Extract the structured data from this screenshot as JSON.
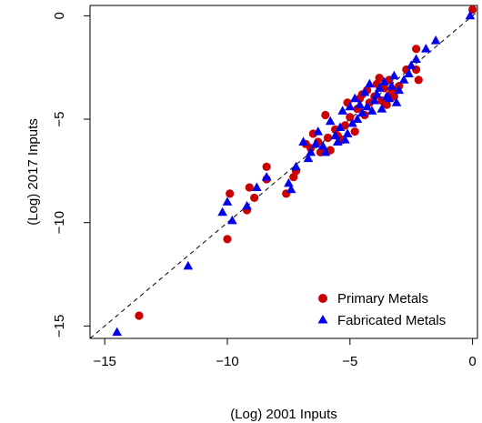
{
  "chart_data": {
    "type": "scatter",
    "xlabel": "(Log) 2001 Inputs",
    "ylabel": "(Log) 2017 Inputs",
    "xlim": [
      -15.6,
      0.2
    ],
    "ylim": [
      -15.6,
      0.5
    ],
    "xticks": [
      -15,
      -10,
      -5,
      0
    ],
    "yticks": [
      -15,
      -10,
      -5,
      0
    ],
    "xtick_labels": [
      "−15",
      "−10",
      "−5",
      "0"
    ],
    "ytick_labels": [
      "−15",
      "−10",
      "−5",
      "0"
    ],
    "reference_line": {
      "style": "dashed",
      "slope": 1,
      "intercept": 0,
      "color": "#000000"
    },
    "legend": {
      "position": "bottom-right"
    },
    "series": [
      {
        "name": "Primary Metals",
        "marker": "circle",
        "color": "#cc0000",
        "points": [
          [
            -13.6,
            -14.5
          ],
          [
            -10.0,
            -10.8
          ],
          [
            -9.9,
            -8.6
          ],
          [
            -9.2,
            -9.4
          ],
          [
            -9.1,
            -8.3
          ],
          [
            -8.9,
            -8.8
          ],
          [
            -8.4,
            -7.3
          ],
          [
            -8.4,
            -7.9
          ],
          [
            -7.6,
            -8.6
          ],
          [
            -7.3,
            -7.8
          ],
          [
            -7.2,
            -7.5
          ],
          [
            -6.8,
            -6.2
          ],
          [
            -6.6,
            -6.4
          ],
          [
            -6.5,
            -5.7
          ],
          [
            -6.3,
            -6.1
          ],
          [
            -6.2,
            -6.6
          ],
          [
            -6.0,
            -4.8
          ],
          [
            -5.9,
            -5.9
          ],
          [
            -5.8,
            -6.5
          ],
          [
            -5.6,
            -5.5
          ],
          [
            -5.5,
            -5.8
          ],
          [
            -5.3,
            -6.0
          ],
          [
            -5.2,
            -5.3
          ],
          [
            -5.1,
            -4.2
          ],
          [
            -5.0,
            -4.9
          ],
          [
            -4.8,
            -5.6
          ],
          [
            -4.7,
            -4.5
          ],
          [
            -4.6,
            -4.0
          ],
          [
            -4.5,
            -3.8
          ],
          [
            -4.4,
            -4.8
          ],
          [
            -4.3,
            -3.6
          ],
          [
            -4.2,
            -4.2
          ],
          [
            -4.0,
            -3.9
          ],
          [
            -3.9,
            -3.3
          ],
          [
            -3.8,
            -3.0
          ],
          [
            -3.7,
            -4.1
          ],
          [
            -3.6,
            -3.5
          ],
          [
            -3.5,
            -4.3
          ],
          [
            -3.4,
            -3.1
          ],
          [
            -3.3,
            -3.7
          ],
          [
            -3.2,
            -3.9
          ],
          [
            -3.1,
            -3.6
          ],
          [
            -3.0,
            -3.4
          ],
          [
            -2.7,
            -2.6
          ],
          [
            -2.3,
            -1.6
          ],
          [
            -2.2,
            -3.1
          ],
          [
            -2.3,
            -2.6
          ],
          [
            0.0,
            0.3
          ]
        ]
      },
      {
        "name": "Fabricated Metals",
        "marker": "triangle",
        "color": "#0000ee",
        "points": [
          [
            -14.5,
            -15.3
          ],
          [
            -11.6,
            -12.1
          ],
          [
            -10.2,
            -9.5
          ],
          [
            -10.0,
            -9.0
          ],
          [
            -9.8,
            -9.9
          ],
          [
            -9.2,
            -9.2
          ],
          [
            -8.8,
            -8.3
          ],
          [
            -8.4,
            -7.8
          ],
          [
            -7.5,
            -8.1
          ],
          [
            -7.4,
            -8.4
          ],
          [
            -7.2,
            -7.3
          ],
          [
            -6.9,
            -6.1
          ],
          [
            -6.7,
            -6.9
          ],
          [
            -6.6,
            -6.6
          ],
          [
            -6.4,
            -6.2
          ],
          [
            -6.3,
            -5.6
          ],
          [
            -6.1,
            -6.3
          ],
          [
            -6.0,
            -6.6
          ],
          [
            -5.8,
            -5.1
          ],
          [
            -5.6,
            -5.8
          ],
          [
            -5.5,
            -6.1
          ],
          [
            -5.4,
            -5.4
          ],
          [
            -5.3,
            -4.6
          ],
          [
            -5.2,
            -6.0
          ],
          [
            -5.1,
            -5.7
          ],
          [
            -5.0,
            -4.4
          ],
          [
            -4.9,
            -5.2
          ],
          [
            -4.8,
            -4.0
          ],
          [
            -4.7,
            -5.0
          ],
          [
            -4.6,
            -4.3
          ],
          [
            -4.5,
            -4.7
          ],
          [
            -4.4,
            -3.7
          ],
          [
            -4.3,
            -4.4
          ],
          [
            -4.2,
            -3.3
          ],
          [
            -4.1,
            -4.6
          ],
          [
            -4.0,
            -4.1
          ],
          [
            -3.9,
            -3.8
          ],
          [
            -3.8,
            -3.5
          ],
          [
            -3.7,
            -4.5
          ],
          [
            -3.6,
            -3.2
          ],
          [
            -3.5,
            -3.9
          ],
          [
            -3.4,
            -4.0
          ],
          [
            -3.3,
            -3.4
          ],
          [
            -3.2,
            -2.9
          ],
          [
            -3.1,
            -4.2
          ],
          [
            -3.0,
            -3.6
          ],
          [
            -2.8,
            -3.1
          ],
          [
            -2.6,
            -2.8
          ],
          [
            -2.5,
            -2.4
          ],
          [
            -2.3,
            -2.1
          ],
          [
            -1.9,
            -1.6
          ],
          [
            -1.5,
            -1.2
          ],
          [
            -0.1,
            0.0
          ]
        ]
      }
    ]
  }
}
